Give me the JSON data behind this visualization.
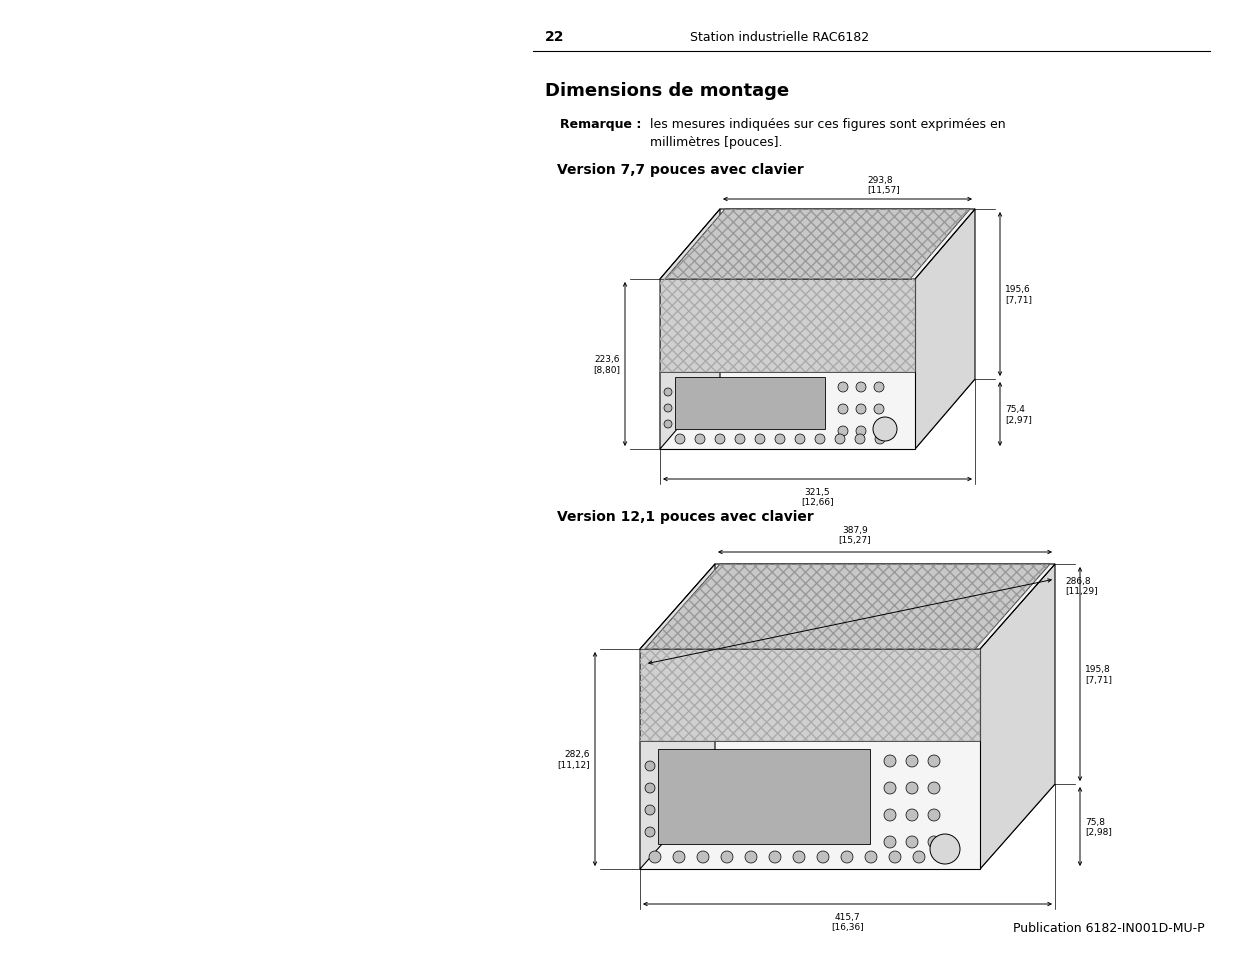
{
  "page_number": "22",
  "header_text": "Station industrielle RAC6182",
  "footer_text": "Publication 6182-IN001D-MU-P",
  "title": "Dimensions de montage",
  "remark_label": "Remarque :",
  "remark_text": "les mesures indiquées sur ces figures sont exprimées en\nmillimètres [pouces].",
  "section1_title": "Version 7,7 pouces avec clavier",
  "section2_title": "Version 12,1 pouces avec clavier",
  "dim77": {
    "width_top": "293,8\n[11,57]",
    "height_left": "223,6\n[8,80]",
    "height_right": "195,6\n[7,71]",
    "width_bottom": "321,5\n[12,66]",
    "depth": "75,4\n[2,97]"
  },
  "dim121": {
    "width_top": "387,9\n[15,27]",
    "width_top2": "286,8\n[11,29]",
    "height_left": "282,6\n[11,12]",
    "height_right": "195,8\n[7,71]",
    "width_bottom": "415,7\n[16,36]",
    "depth": "75,8\n[2,98]"
  },
  "bg_color": "#ffffff",
  "text_color": "#000000",
  "line_color": "#000000"
}
